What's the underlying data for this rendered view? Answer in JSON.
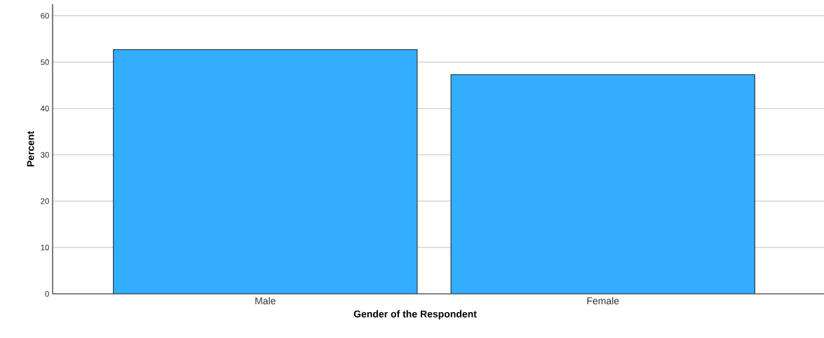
{
  "chart_data": {
    "type": "bar",
    "categories": [
      "Male",
      "Female"
    ],
    "values": [
      52.7,
      47.3
    ],
    "color": "#33adff",
    "xlabel": "Gender of the Respondent",
    "ylabel": "Percent",
    "ylim": [
      0,
      62.5
    ],
    "yticks": [
      0,
      10,
      20,
      30,
      40,
      50,
      60
    ],
    "grid": "y"
  }
}
